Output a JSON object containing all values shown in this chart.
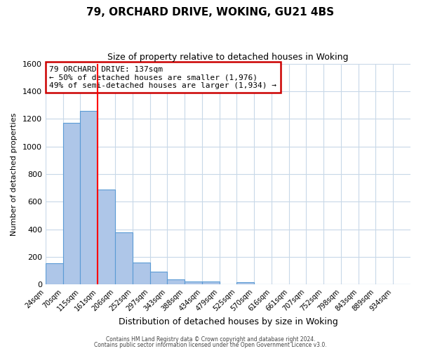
{
  "title": "79, ORCHARD DRIVE, WOKING, GU21 4BS",
  "subtitle": "Size of property relative to detached houses in Woking",
  "xlabel": "Distribution of detached houses by size in Woking",
  "ylabel": "Number of detached properties",
  "bin_labels": [
    "24sqm",
    "70sqm",
    "115sqm",
    "161sqm",
    "206sqm",
    "252sqm",
    "297sqm",
    "343sqm",
    "388sqm",
    "434sqm",
    "479sqm",
    "525sqm",
    "570sqm",
    "616sqm",
    "661sqm",
    "707sqm",
    "752sqm",
    "798sqm",
    "843sqm",
    "889sqm",
    "934sqm"
  ],
  "bar_heights": [
    152,
    1170,
    1255,
    685,
    375,
    160,
    90,
    38,
    22,
    22,
    0,
    15,
    0,
    0,
    0,
    0,
    0,
    0,
    0,
    0,
    0
  ],
  "bar_color": "#aec6e8",
  "bar_edge_color": "#5b9bd5",
  "annotation_title": "79 ORCHARD DRIVE: 137sqm",
  "annotation_line1": "← 50% of detached houses are smaller (1,976)",
  "annotation_line2": "49% of semi-detached houses are larger (1,934) →",
  "annotation_box_color": "#ffffff",
  "annotation_box_edge": "#cc0000",
  "red_line_x": 2.5,
  "ylim": [
    0,
    1600
  ],
  "yticks": [
    0,
    200,
    400,
    600,
    800,
    1000,
    1200,
    1400,
    1600
  ],
  "footer1": "Contains HM Land Registry data © Crown copyright and database right 2024.",
  "footer2": "Contains public sector information licensed under the Open Government Licence v3.0.",
  "background_color": "#ffffff",
  "grid_color": "#c8d8e8"
}
